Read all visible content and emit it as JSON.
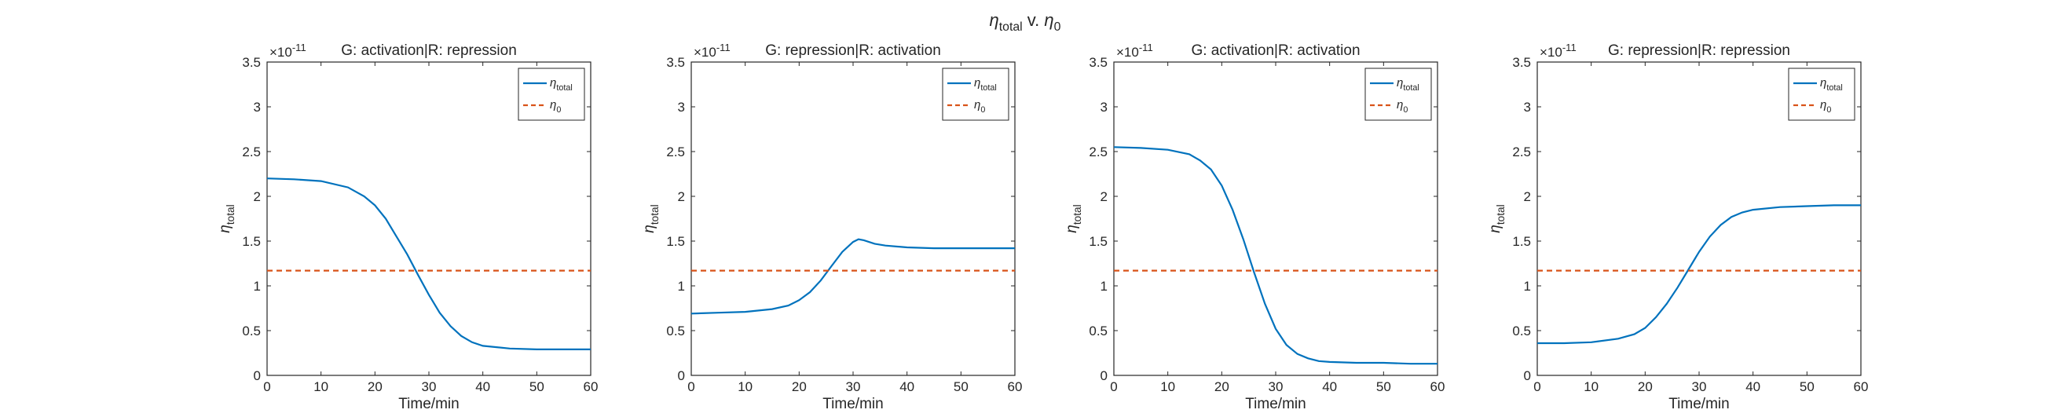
{
  "figure": {
    "title": {
      "symbol": "η",
      "sub": "total",
      "mid": " v. ",
      "symbol2": "η",
      "sub2": "0"
    }
  },
  "chart_data": [
    {
      "type": "line",
      "title": "G: activation|R: repression",
      "xlabel": "Time/min",
      "ylabel": {
        "symbol": "η",
        "sub": "total"
      },
      "xlim": [
        0,
        60
      ],
      "ylim": [
        0,
        3.5
      ],
      "y_multiplier": "×10^-11",
      "xticks": [
        0,
        10,
        20,
        30,
        40,
        50,
        60
      ],
      "yticks": [
        0,
        0.5,
        1,
        1.5,
        2,
        2.5,
        3,
        3.5
      ],
      "legend_position": "top-right",
      "grid": false,
      "series": [
        {
          "name": {
            "symbol": "η",
            "sub": "total"
          },
          "style": "solid",
          "color": "#0072BD",
          "x": [
            0,
            5,
            10,
            15,
            18,
            20,
            22,
            24,
            26,
            28,
            30,
            32,
            34,
            36,
            38,
            40,
            45,
            50,
            55,
            60
          ],
          "y": [
            2.2,
            2.19,
            2.17,
            2.1,
            2.0,
            1.9,
            1.75,
            1.55,
            1.35,
            1.12,
            0.9,
            0.7,
            0.55,
            0.44,
            0.37,
            0.33,
            0.3,
            0.29,
            0.29,
            0.29
          ]
        },
        {
          "name": {
            "symbol": "η",
            "sub": "0"
          },
          "style": "dashed",
          "color": "#D95319",
          "x": [
            0,
            60
          ],
          "y": [
            1.17,
            1.17
          ]
        }
      ]
    },
    {
      "type": "line",
      "title": "G: repression|R: activation",
      "xlabel": "Time/min",
      "ylabel": {
        "symbol": "η",
        "sub": "total"
      },
      "xlim": [
        0,
        60
      ],
      "ylim": [
        0,
        3.5
      ],
      "y_multiplier": "×10^-11",
      "xticks": [
        0,
        10,
        20,
        30,
        40,
        50,
        60
      ],
      "yticks": [
        0,
        0.5,
        1,
        1.5,
        2,
        2.5,
        3,
        3.5
      ],
      "legend_position": "top-right",
      "grid": false,
      "series": [
        {
          "name": {
            "symbol": "η",
            "sub": "total"
          },
          "style": "solid",
          "color": "#0072BD",
          "x": [
            0,
            5,
            10,
            15,
            18,
            20,
            22,
            24,
            26,
            28,
            30,
            31,
            32,
            34,
            36,
            40,
            45,
            50,
            55,
            60
          ],
          "y": [
            0.69,
            0.7,
            0.71,
            0.74,
            0.78,
            0.84,
            0.93,
            1.06,
            1.22,
            1.38,
            1.49,
            1.52,
            1.51,
            1.47,
            1.45,
            1.43,
            1.42,
            1.42,
            1.42,
            1.42
          ]
        },
        {
          "name": {
            "symbol": "η",
            "sub": "0"
          },
          "style": "dashed",
          "color": "#D95319",
          "x": [
            0,
            60
          ],
          "y": [
            1.17,
            1.17
          ]
        }
      ]
    },
    {
      "type": "line",
      "title": "G: activation|R: activation",
      "xlabel": "Time/min",
      "ylabel": {
        "symbol": "η",
        "sub": "total"
      },
      "xlim": [
        0,
        60
      ],
      "ylim": [
        0,
        3.5
      ],
      "y_multiplier": "×10^-11",
      "xticks": [
        0,
        10,
        20,
        30,
        40,
        50,
        60
      ],
      "yticks": [
        0,
        0.5,
        1,
        1.5,
        2,
        2.5,
        3,
        3.5
      ],
      "legend_position": "top-right",
      "grid": false,
      "series": [
        {
          "name": {
            "symbol": "η",
            "sub": "total"
          },
          "style": "solid",
          "color": "#0072BD",
          "x": [
            0,
            5,
            10,
            14,
            16,
            18,
            20,
            22,
            24,
            26,
            28,
            30,
            32,
            34,
            36,
            38,
            40,
            45,
            50,
            55,
            60
          ],
          "y": [
            2.55,
            2.54,
            2.52,
            2.47,
            2.4,
            2.3,
            2.12,
            1.85,
            1.52,
            1.15,
            0.8,
            0.52,
            0.34,
            0.24,
            0.19,
            0.16,
            0.15,
            0.14,
            0.14,
            0.13,
            0.13
          ]
        },
        {
          "name": {
            "symbol": "η",
            "sub": "0"
          },
          "style": "dashed",
          "color": "#D95319",
          "x": [
            0,
            60
          ],
          "y": [
            1.17,
            1.17
          ]
        }
      ]
    },
    {
      "type": "line",
      "title": "G: repression|R: repression",
      "xlabel": "Time/min",
      "ylabel": {
        "symbol": "η",
        "sub": "total"
      },
      "xlim": [
        0,
        60
      ],
      "ylim": [
        0,
        3.5
      ],
      "y_multiplier": "×10^-11",
      "xticks": [
        0,
        10,
        20,
        30,
        40,
        50,
        60
      ],
      "yticks": [
        0,
        0.5,
        1,
        1.5,
        2,
        2.5,
        3,
        3.5
      ],
      "legend_position": "top-right",
      "grid": false,
      "series": [
        {
          "name": {
            "symbol": "η",
            "sub": "total"
          },
          "style": "solid",
          "color": "#0072BD",
          "x": [
            0,
            5,
            10,
            15,
            18,
            20,
            22,
            24,
            26,
            28,
            30,
            32,
            34,
            36,
            38,
            40,
            45,
            50,
            55,
            60
          ],
          "y": [
            0.36,
            0.36,
            0.37,
            0.41,
            0.46,
            0.53,
            0.65,
            0.8,
            0.98,
            1.18,
            1.38,
            1.55,
            1.68,
            1.77,
            1.82,
            1.85,
            1.88,
            1.89,
            1.9,
            1.9
          ]
        },
        {
          "name": {
            "symbol": "η",
            "sub": "0"
          },
          "style": "dashed",
          "color": "#D95319",
          "x": [
            0,
            60
          ],
          "y": [
            1.17,
            1.17
          ]
        }
      ]
    }
  ]
}
